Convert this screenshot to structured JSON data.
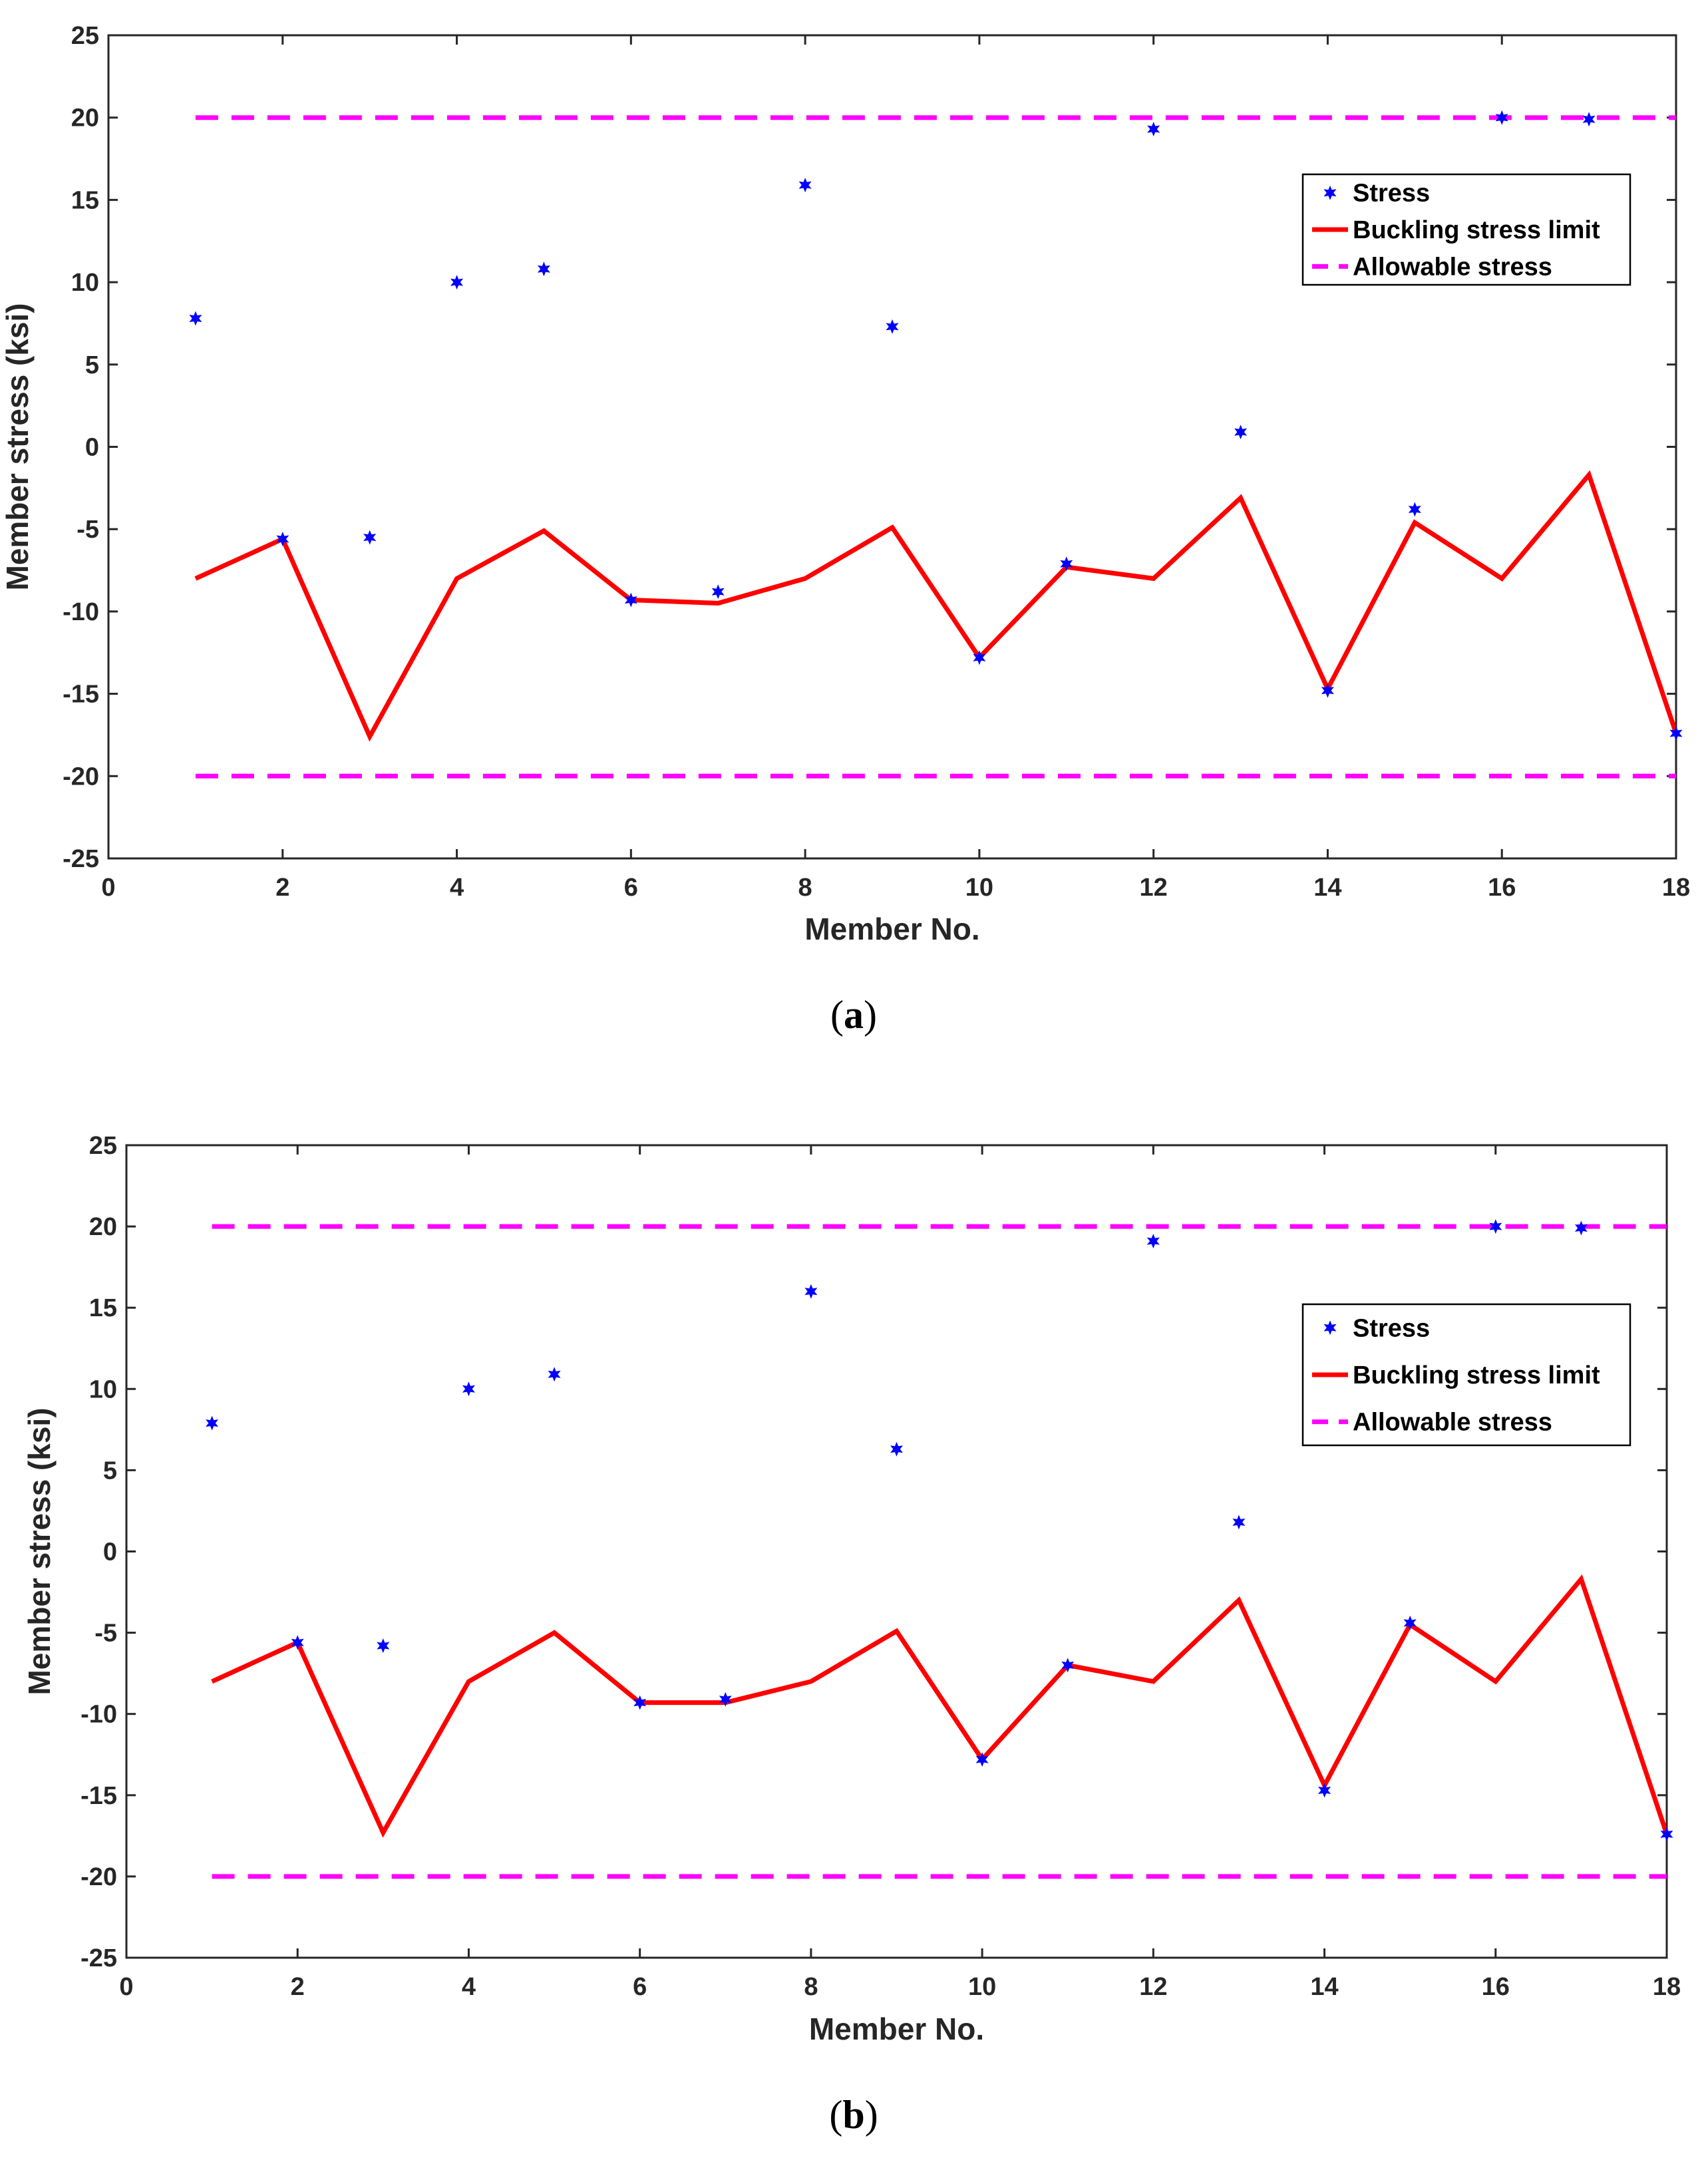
{
  "colors": {
    "stress": "#0000ff",
    "buckling": "#ff0000",
    "allowable": "#ff00ff",
    "axes": "#262626",
    "legend_border": "#000000",
    "background": "#ffffff"
  },
  "chart_data": [
    {
      "panel": "a",
      "caption": {
        "open": "(",
        "letter": "a",
        "close": ")"
      },
      "type": "line",
      "title": "",
      "xlabel": "Member No.",
      "ylabel": "Member stress (ksi)",
      "xlim": [
        0,
        18
      ],
      "ylim": [
        -25,
        25
      ],
      "xticks": [
        0,
        2,
        4,
        6,
        8,
        10,
        12,
        14,
        16,
        18
      ],
      "yticks": [
        25,
        20,
        15,
        10,
        5,
        0,
        -5,
        -10,
        -15,
        -20,
        -25
      ],
      "legend_position": "upper-right",
      "x": [
        1,
        2,
        3,
        4,
        5,
        6,
        7,
        8,
        9,
        10,
        11,
        12,
        13,
        14,
        15,
        16,
        17,
        18
      ],
      "series": [
        {
          "name": "Stress",
          "style": "markers",
          "values": [
            7.8,
            -5.6,
            -5.5,
            10.0,
            10.8,
            -9.3,
            -8.8,
            15.9,
            7.3,
            -12.8,
            -7.1,
            19.3,
            0.9,
            -14.8,
            -3.8,
            20.0,
            19.9,
            -17.4
          ]
        },
        {
          "name": "Buckling stress limit",
          "style": "line",
          "values": [
            -8.0,
            -5.6,
            -17.6,
            -8.0,
            -5.1,
            -9.3,
            -9.5,
            -8.0,
            -4.9,
            -12.8,
            -7.3,
            -8.0,
            -3.1,
            -14.7,
            -4.6,
            -8.0,
            -1.7,
            -17.4
          ]
        },
        {
          "name": "Allowable stress",
          "style": "dashed",
          "x": [
            1,
            18
          ],
          "upper": 20,
          "lower": -20
        }
      ]
    },
    {
      "panel": "b",
      "caption": {
        "open": "(",
        "letter": "b",
        "close": ")"
      },
      "type": "line",
      "title": "",
      "xlabel": "Member No.",
      "ylabel": "Member stress (ksi)",
      "xlim": [
        0,
        18
      ],
      "ylim": [
        -25,
        25
      ],
      "xticks": [
        0,
        2,
        4,
        6,
        8,
        10,
        12,
        14,
        16,
        18
      ],
      "yticks": [
        25,
        20,
        15,
        10,
        5,
        0,
        -5,
        -10,
        -15,
        -20,
        -25
      ],
      "legend_position": "right",
      "x": [
        1,
        2,
        3,
        4,
        5,
        6,
        7,
        8,
        9,
        10,
        11,
        12,
        13,
        14,
        15,
        16,
        17,
        18
      ],
      "series": [
        {
          "name": "Stress",
          "style": "markers",
          "values": [
            7.9,
            -5.6,
            -5.8,
            10.0,
            10.9,
            -9.3,
            -9.1,
            16.0,
            6.3,
            -12.8,
            -7.0,
            19.1,
            1.8,
            -14.7,
            -4.4,
            20.0,
            19.9,
            -17.4
          ]
        },
        {
          "name": "Buckling stress limit",
          "style": "line",
          "values": [
            -8.0,
            -5.6,
            -17.3,
            -8.0,
            -5.0,
            -9.3,
            -9.3,
            -8.0,
            -4.9,
            -12.8,
            -7.0,
            -8.0,
            -3.0,
            -14.4,
            -4.5,
            -8.0,
            -1.7,
            -17.4
          ]
        },
        {
          "name": "Allowable stress",
          "style": "dashed",
          "x": [
            1,
            18
          ],
          "upper": 20,
          "lower": -20
        }
      ]
    }
  ]
}
